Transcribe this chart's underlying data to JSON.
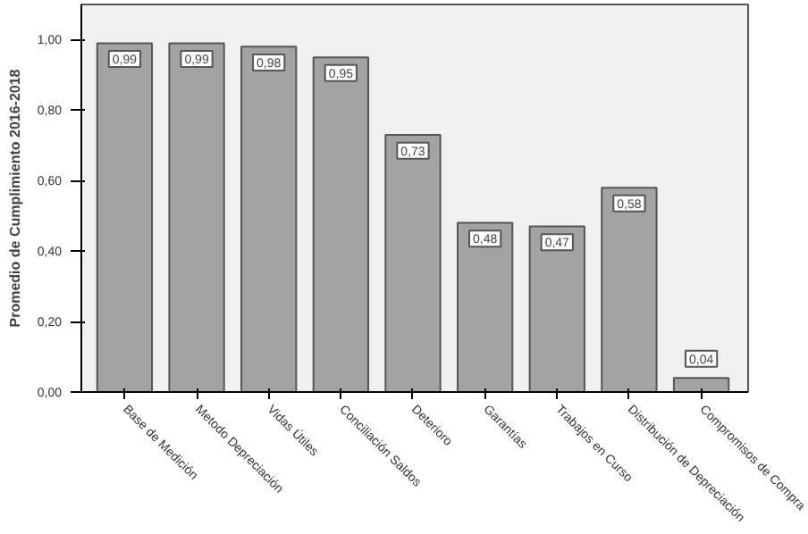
{
  "chart_data": {
    "type": "bar",
    "ylabel": "Promedio de Cumplimiento 2016-2018",
    "categories": [
      "Base de Medición",
      "Metodo Depreciación",
      "Vidas Útiles",
      "Conciliación Saldos",
      "Deterioro",
      "Garantías",
      "Trabajos en Curso",
      "Distribución de Depreciación",
      "Compromisos de Compra"
    ],
    "values": [
      0.99,
      0.99,
      0.98,
      0.95,
      0.73,
      0.48,
      0.47,
      0.58,
      0.04
    ],
    "value_labels": [
      "0,99",
      "0,99",
      "0,98",
      "0,95",
      "0,73",
      "0,48",
      "0,47",
      "0,58",
      "0,04"
    ],
    "color": "#a3a3a3",
    "ylim": [
      0,
      1.1
    ],
    "yticks": [
      {
        "value": 0,
        "label": "0,00"
      },
      {
        "value": 0.2,
        "label": "0,20"
      },
      {
        "value": 0.4,
        "label": "0,40"
      },
      {
        "value": 0.6,
        "label": "0,60"
      },
      {
        "value": 0.8,
        "label": "0,80"
      },
      {
        "value": 1.0,
        "label": "1,00"
      }
    ],
    "grid": false
  }
}
